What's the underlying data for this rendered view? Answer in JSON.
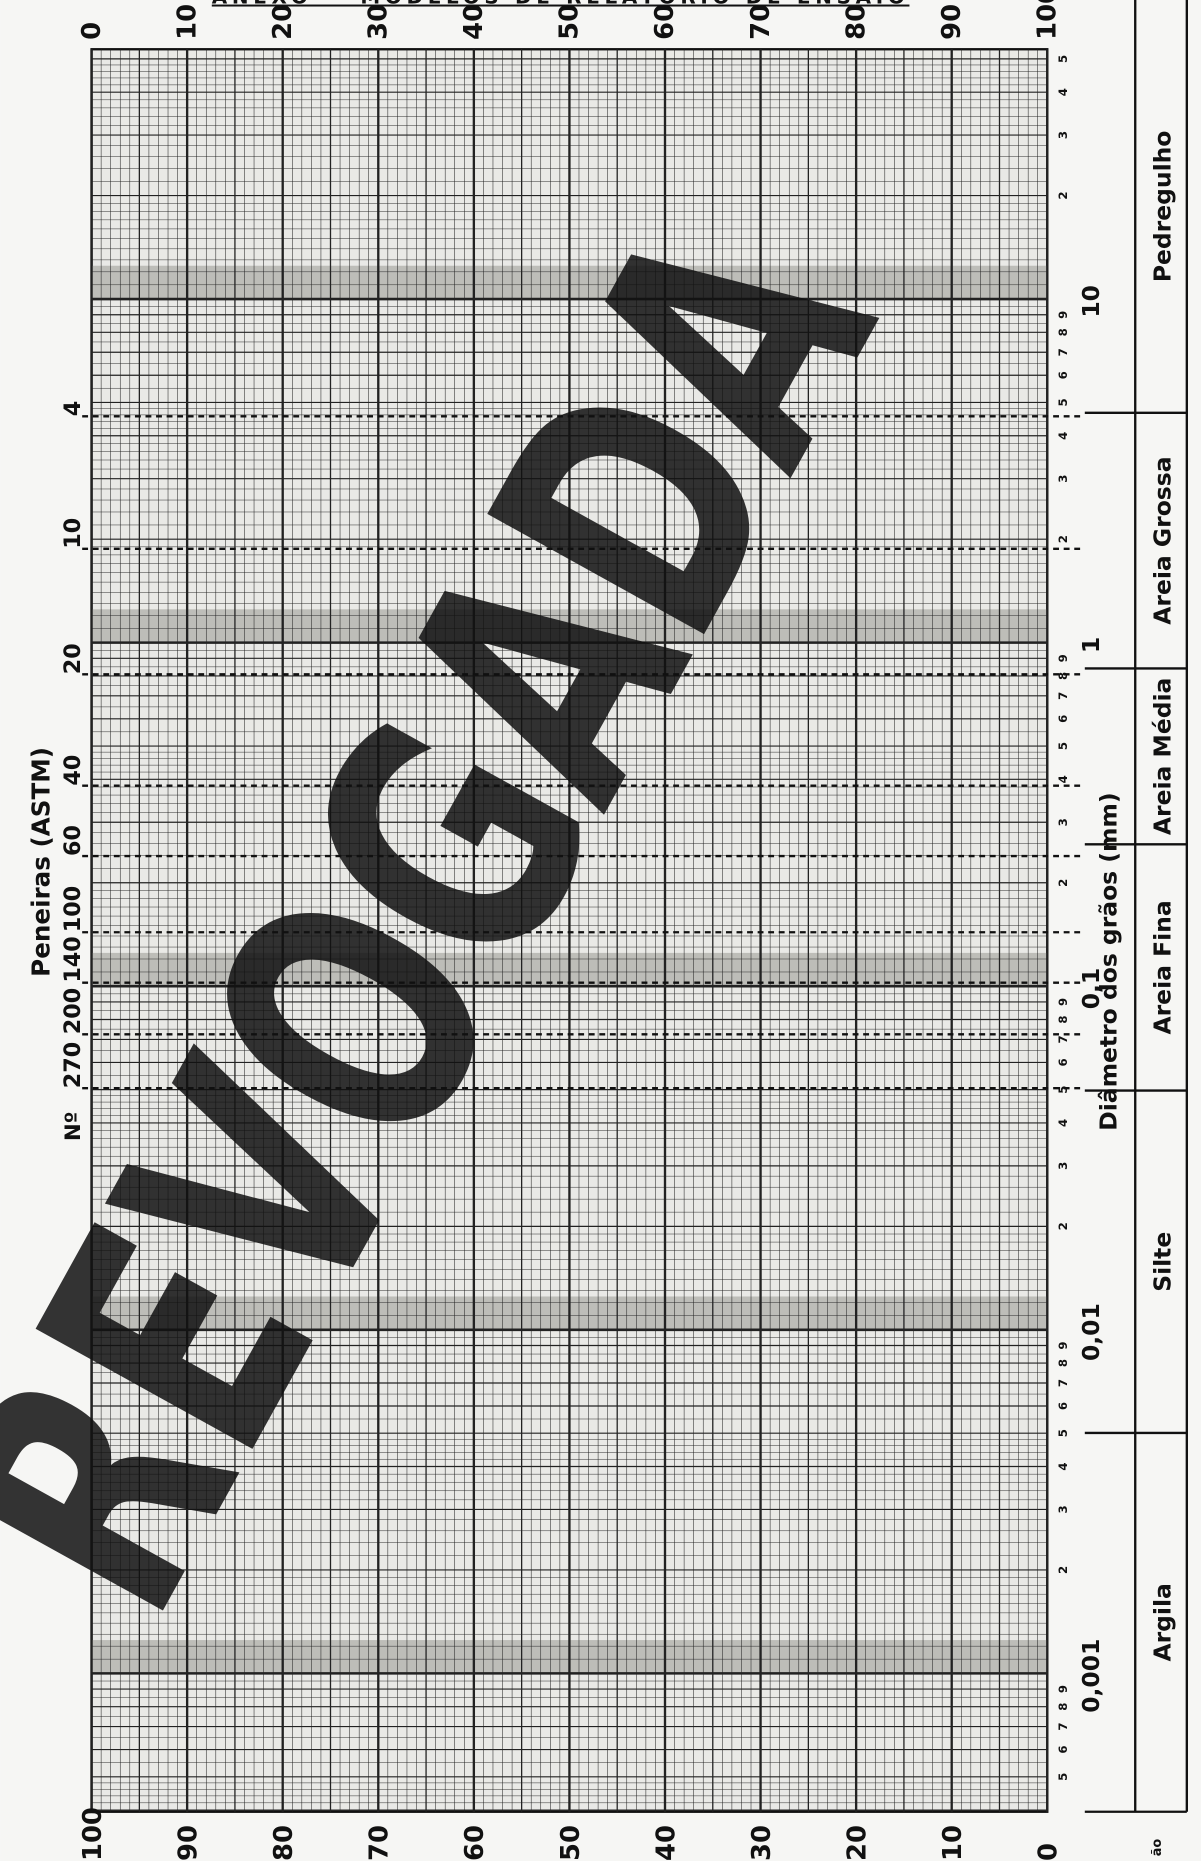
{
  "header": {
    "title": "ANEXO — MODELOS DE RELATÓRIO DE ENSAIO"
  },
  "percent_top": [
    0,
    10,
    20,
    30,
    40,
    50,
    60,
    70,
    80,
    90,
    100
  ],
  "percent_bottom": [
    100,
    90,
    80,
    70,
    60,
    50,
    40,
    30,
    20,
    10,
    0
  ],
  "sieves": {
    "title": "Peneiras (ASTM)",
    "prefix": "Nº",
    "labels": [
      "4",
      "10",
      "20",
      "40",
      "60",
      "100",
      "140",
      "200",
      "270"
    ]
  },
  "diameter": {
    "title": "Diâmetro dos grãos (mm)",
    "decades": [
      "10",
      "1",
      "0,1",
      "0,01",
      "0,001"
    ],
    "minor_labels": [
      "2",
      "3",
      "4",
      "5",
      "6",
      "7",
      "8",
      "9"
    ]
  },
  "classes": [
    "Pedregulho",
    "Areia Grossa",
    "Areia Média",
    "Areia Fina",
    "Silte",
    "Argila"
  ],
  "watermark": "REVOGADA",
  "footer": "ão"
}
